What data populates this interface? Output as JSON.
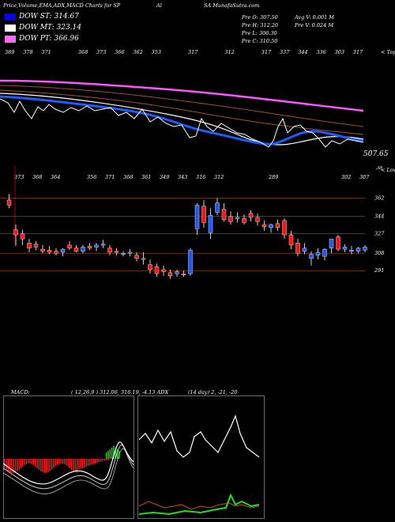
{
  "header": {
    "title": "Price,Volume,EMA,ADX,MACD Charts for SP",
    "mid": "Al",
    "site": "SA MunafaSutra.com"
  },
  "legend": [
    {
      "label": "DOW ST: 314.67",
      "color": "#0000ff"
    },
    {
      "label": "DOW MT: 323.14",
      "color": "#ffffff"
    },
    {
      "label": "DOW PT: 366.96",
      "color": "#ff66ff"
    }
  ],
  "ohlc": {
    "open": "Pre O: 307.50",
    "high": "Pre H: 312.20",
    "low": "Pre L: 306.30",
    "close": "Pre C: 310.50",
    "avgv": "Avg V: 0.001 M",
    "prev": "Pre V: 0.024 M"
  },
  "ema_panel": {
    "top_values": [
      "389",
      "378",
      "371",
      "",
      "368",
      "373",
      "366",
      "362",
      "353",
      "",
      "317",
      "",
      "312",
      "",
      "317",
      "337",
      "344",
      "336",
      "303",
      "317"
    ],
    "right_top": "< Tops",
    "right_value": "507.65",
    "right_bottom": "38"
  },
  "price_panel": {
    "top_values": [
      "373",
      "368",
      "364",
      "",
      "356",
      "371",
      "368",
      "361",
      "349",
      "343",
      "316",
      "312",
      "",
      "",
      "289",
      "",
      "",
      "",
      "302",
      "307"
    ],
    "right_top": "< Lows",
    "levels": [
      "362",
      "344",
      "327",
      "308",
      "291"
    ]
  },
  "macd_label": "MACD:",
  "macd_values": "( 12,26,9 ) 312.06, 316.19, -4.13 ADX",
  "adx_values": "(14 day) 2, -21, -20",
  "chart_data": {
    "type": "candlestick",
    "y_levels": [
      362,
      344,
      327,
      308,
      291
    ],
    "candles": [
      {
        "o": 360,
        "h": 366,
        "l": 352,
        "c": 355
      },
      {
        "o": 331,
        "h": 336,
        "l": 315,
        "c": 326
      },
      {
        "o": 327,
        "h": 331,
        "l": 316,
        "c": 322
      },
      {
        "o": 318,
        "h": 322,
        "l": 309,
        "c": 313
      },
      {
        "o": 317,
        "h": 320,
        "l": 311,
        "c": 314
      },
      {
        "o": 312,
        "h": 316,
        "l": 308,
        "c": 310
      },
      {
        "o": 311,
        "h": 315,
        "l": 307,
        "c": 309
      },
      {
        "o": 310,
        "h": 313,
        "l": 306,
        "c": 308
      },
      {
        "o": 309,
        "h": 313,
        "l": 305,
        "c": 312
      },
      {
        "o": 316,
        "h": 320,
        "l": 311,
        "c": 313
      },
      {
        "o": 313,
        "h": 316,
        "l": 309,
        "c": 310
      },
      {
        "o": 310,
        "h": 316,
        "l": 308,
        "c": 314
      },
      {
        "o": 315,
        "h": 318,
        "l": 311,
        "c": 313
      },
      {
        "o": 314,
        "h": 318,
        "l": 310,
        "c": 316
      },
      {
        "o": 316,
        "h": 321,
        "l": 313,
        "c": 317
      },
      {
        "o": 313,
        "h": 316,
        "l": 306,
        "c": 309
      },
      {
        "o": 310,
        "h": 313,
        "l": 306,
        "c": 309
      },
      {
        "o": 307,
        "h": 310,
        "l": 305,
        "c": 308
      },
      {
        "o": 308,
        "h": 312,
        "l": 305,
        "c": 309
      },
      {
        "o": 306,
        "h": 309,
        "l": 300,
        "c": 303
      },
      {
        "o": 303,
        "h": 309,
        "l": 297,
        "c": 302
      },
      {
        "o": 297,
        "h": 302,
        "l": 288,
        "c": 292
      },
      {
        "o": 295,
        "h": 298,
        "l": 285,
        "c": 288
      },
      {
        "o": 292,
        "h": 296,
        "l": 286,
        "c": 290
      },
      {
        "o": 289,
        "h": 292,
        "l": 283,
        "c": 286
      },
      {
        "o": 288,
        "h": 292,
        "l": 285,
        "c": 290
      },
      {
        "o": 288,
        "h": 291,
        "l": 285,
        "c": 287
      },
      {
        "o": 288,
        "h": 313,
        "l": 286,
        "c": 311
      },
      {
        "o": 332,
        "h": 357,
        "l": 326,
        "c": 355
      },
      {
        "o": 354,
        "h": 360,
        "l": 333,
        "c": 338
      },
      {
        "o": 328,
        "h": 352,
        "l": 322,
        "c": 345
      },
      {
        "o": 348,
        "h": 362,
        "l": 345,
        "c": 357
      },
      {
        "o": 351,
        "h": 357,
        "l": 339,
        "c": 341
      },
      {
        "o": 344,
        "h": 349,
        "l": 336,
        "c": 339
      },
      {
        "o": 342,
        "h": 348,
        "l": 338,
        "c": 343
      },
      {
        "o": 342,
        "h": 346,
        "l": 336,
        "c": 338
      },
      {
        "o": 347,
        "h": 350,
        "l": 339,
        "c": 343
      },
      {
        "o": 343,
        "h": 347,
        "l": 335,
        "c": 339
      },
      {
        "o": 336,
        "h": 340,
        "l": 330,
        "c": 334
      },
      {
        "o": 333,
        "h": 337,
        "l": 328,
        "c": 336
      },
      {
        "o": 337,
        "h": 341,
        "l": 330,
        "c": 333
      },
      {
        "o": 340,
        "h": 342,
        "l": 322,
        "c": 326
      },
      {
        "o": 326,
        "h": 330,
        "l": 312,
        "c": 316
      },
      {
        "o": 318,
        "h": 322,
        "l": 305,
        "c": 308
      },
      {
        "o": 310,
        "h": 318,
        "l": 307,
        "c": 313
      },
      {
        "o": 303,
        "h": 310,
        "l": 296,
        "c": 307
      },
      {
        "o": 306,
        "h": 313,
        "l": 302,
        "c": 309
      },
      {
        "o": 305,
        "h": 313,
        "l": 301,
        "c": 312
      },
      {
        "o": 313,
        "h": 322,
        "l": 308,
        "c": 322
      },
      {
        "o": 324,
        "h": 326,
        "l": 310,
        "c": 312
      },
      {
        "o": 312,
        "h": 317,
        "l": 309,
        "c": 314
      },
      {
        "o": 311,
        "h": 315,
        "l": 307,
        "c": 311
      },
      {
        "o": 310,
        "h": 314,
        "l": 308,
        "c": 313
      },
      {
        "o": 311,
        "h": 316,
        "l": 309,
        "c": 314
      }
    ]
  }
}
